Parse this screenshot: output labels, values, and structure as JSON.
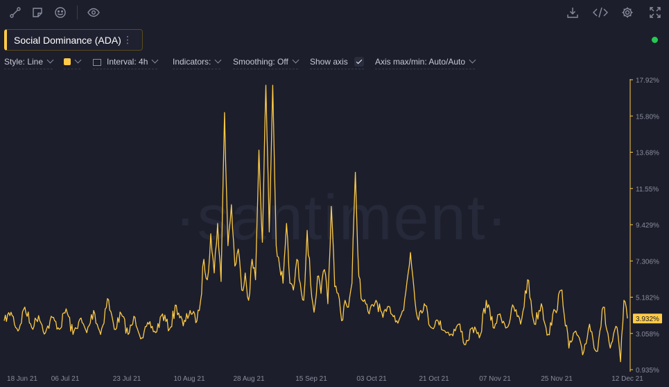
{
  "toolbar": {
    "left_icons": [
      "draw-line-icon",
      "sticky-note-icon",
      "emoji-icon",
      "eye-icon"
    ],
    "right_icons": [
      "download-icon",
      "code-embed-icon",
      "gear-icon",
      "fullscreen-icon"
    ]
  },
  "metric": {
    "label": "Social Dominance (ADA)",
    "menu": "⋮",
    "color": "#ffcb47"
  },
  "status_color": "#26c953",
  "settings": {
    "style": "Style: Line",
    "interval": "Interval: 4h",
    "indicators": "Indicators:",
    "smoothing": "Smoothing: Off",
    "show_axis": "Show axis",
    "show_axis_checked": true,
    "axis_minmax": "Axis max/min: Auto/Auto"
  },
  "watermark": "·santiment·",
  "chart_data": {
    "type": "line",
    "title": "Social Dominance (ADA)",
    "ylim": [
      0.935,
      17.92
    ],
    "y_ticks": [
      "17.92%",
      "15.80%",
      "13.68%",
      "11.55%",
      "9.429%",
      "7.306%",
      "5.182%",
      "3.058%",
      "0.935%"
    ],
    "x_ticks": [
      "18 Jun 21",
      "06 Jul 21",
      "23 Jul 21",
      "10 Aug 21",
      "28 Aug 21",
      "15 Sep 21",
      "03 Oct 21",
      "21 Oct 21",
      "07 Nov 21",
      "25 Nov 21",
      "12 Dec 21"
    ],
    "x_range": [
      "2021-06-14",
      "2021-12-12"
    ],
    "last_value": 3.932,
    "last_value_label": "3.932%",
    "series": [
      {
        "color": "#ffcb47",
        "points": [
          [
            "2021-06-14",
            3.8
          ],
          [
            "2021-06-16",
            4.3
          ],
          [
            "2021-06-18",
            3.2
          ],
          [
            "2021-06-20",
            4.6
          ],
          [
            "2021-06-22",
            3.4
          ],
          [
            "2021-06-24",
            4.1
          ],
          [
            "2021-06-26",
            3.1
          ],
          [
            "2021-06-28",
            4.0
          ],
          [
            "2021-06-30",
            3.3
          ],
          [
            "2021-07-02",
            4.5
          ],
          [
            "2021-07-04",
            3.0
          ],
          [
            "2021-07-06",
            3.9
          ],
          [
            "2021-07-08",
            3.1
          ],
          [
            "2021-07-10",
            4.4
          ],
          [
            "2021-07-12",
            3.0
          ],
          [
            "2021-07-14",
            5.1
          ],
          [
            "2021-07-16",
            3.3
          ],
          [
            "2021-07-18",
            4.2
          ],
          [
            "2021-07-20",
            3.0
          ],
          [
            "2021-07-22",
            4.0
          ],
          [
            "2021-07-24",
            2.8
          ],
          [
            "2021-07-26",
            3.6
          ],
          [
            "2021-07-28",
            3.1
          ],
          [
            "2021-07-30",
            4.2
          ],
          [
            "2021-08-01",
            3.3
          ],
          [
            "2021-08-03",
            4.7
          ],
          [
            "2021-08-05",
            3.5
          ],
          [
            "2021-08-07",
            4.4
          ],
          [
            "2021-08-09",
            3.8
          ],
          [
            "2021-08-10",
            4.9
          ],
          [
            "2021-08-11",
            7.4
          ],
          [
            "2021-08-12",
            6.2
          ],
          [
            "2021-08-13",
            8.9
          ],
          [
            "2021-08-14",
            6.6
          ],
          [
            "2021-08-15",
            9.5
          ],
          [
            "2021-08-16",
            6.1
          ],
          [
            "2021-08-17",
            16.0
          ],
          [
            "2021-08-18",
            8.2
          ],
          [
            "2021-08-19",
            10.6
          ],
          [
            "2021-08-20",
            7.0
          ],
          [
            "2021-08-21",
            8.0
          ],
          [
            "2021-08-22",
            5.6
          ],
          [
            "2021-08-23",
            6.6
          ],
          [
            "2021-08-24",
            5.0
          ],
          [
            "2021-08-25",
            7.4
          ],
          [
            "2021-08-26",
            6.2
          ],
          [
            "2021-08-27",
            13.8
          ],
          [
            "2021-08-28",
            8.4
          ],
          [
            "2021-08-29",
            17.6
          ],
          [
            "2021-08-30",
            9.0
          ],
          [
            "2021-08-31",
            17.6
          ],
          [
            "2021-09-01",
            8.2
          ],
          [
            "2021-09-02",
            7.0
          ],
          [
            "2021-09-03",
            6.0
          ],
          [
            "2021-09-04",
            9.5
          ],
          [
            "2021-09-05",
            6.0
          ],
          [
            "2021-09-06",
            5.6
          ],
          [
            "2021-09-07",
            7.4
          ],
          [
            "2021-09-08",
            6.0
          ],
          [
            "2021-09-09",
            5.0
          ],
          [
            "2021-09-10",
            9.1
          ],
          [
            "2021-09-11",
            6.0
          ],
          [
            "2021-09-12",
            4.3
          ],
          [
            "2021-09-13",
            6.4
          ],
          [
            "2021-09-14",
            5.4
          ],
          [
            "2021-09-15",
            6.8
          ],
          [
            "2021-09-16",
            4.8
          ],
          [
            "2021-09-17",
            10.5
          ],
          [
            "2021-09-18",
            5.8
          ],
          [
            "2021-09-19",
            5.4
          ],
          [
            "2021-09-20",
            3.8
          ],
          [
            "2021-09-21",
            5.0
          ],
          [
            "2021-09-22",
            4.6
          ],
          [
            "2021-09-23",
            6.0
          ],
          [
            "2021-09-24",
            12.5
          ],
          [
            "2021-09-25",
            6.4
          ],
          [
            "2021-09-26",
            5.0
          ],
          [
            "2021-09-27",
            4.8
          ],
          [
            "2021-09-28",
            4.2
          ],
          [
            "2021-09-30",
            5.0
          ],
          [
            "2021-10-02",
            4.0
          ],
          [
            "2021-10-04",
            4.6
          ],
          [
            "2021-10-06",
            3.8
          ],
          [
            "2021-10-08",
            4.4
          ],
          [
            "2021-10-10",
            7.8
          ],
          [
            "2021-10-12",
            4.0
          ],
          [
            "2021-10-14",
            4.8
          ],
          [
            "2021-10-16",
            3.4
          ],
          [
            "2021-10-18",
            3.8
          ],
          [
            "2021-10-20",
            3.2
          ],
          [
            "2021-10-22",
            3.0
          ],
          [
            "2021-10-24",
            3.6
          ],
          [
            "2021-10-26",
            2.4
          ],
          [
            "2021-10-28",
            3.4
          ],
          [
            "2021-10-30",
            2.8
          ],
          [
            "2021-11-01",
            5.0
          ],
          [
            "2021-11-03",
            3.4
          ],
          [
            "2021-11-05",
            4.2
          ],
          [
            "2021-11-07",
            3.4
          ],
          [
            "2021-11-09",
            4.6
          ],
          [
            "2021-11-11",
            3.6
          ],
          [
            "2021-11-13",
            6.2
          ],
          [
            "2021-11-15",
            3.6
          ],
          [
            "2021-11-17",
            4.8
          ],
          [
            "2021-11-19",
            3.0
          ],
          [
            "2021-11-21",
            4.4
          ],
          [
            "2021-11-23",
            5.6
          ],
          [
            "2021-11-25",
            2.2
          ],
          [
            "2021-11-27",
            3.2
          ],
          [
            "2021-11-29",
            1.8
          ],
          [
            "2021-12-01",
            3.6
          ],
          [
            "2021-12-03",
            2.0
          ],
          [
            "2021-12-05",
            4.6
          ],
          [
            "2021-12-07",
            2.2
          ],
          [
            "2021-12-09",
            3.4
          ],
          [
            "2021-12-10",
            1.4
          ],
          [
            "2021-12-11",
            5.0
          ],
          [
            "2021-12-12",
            3.932
          ]
        ]
      }
    ]
  }
}
